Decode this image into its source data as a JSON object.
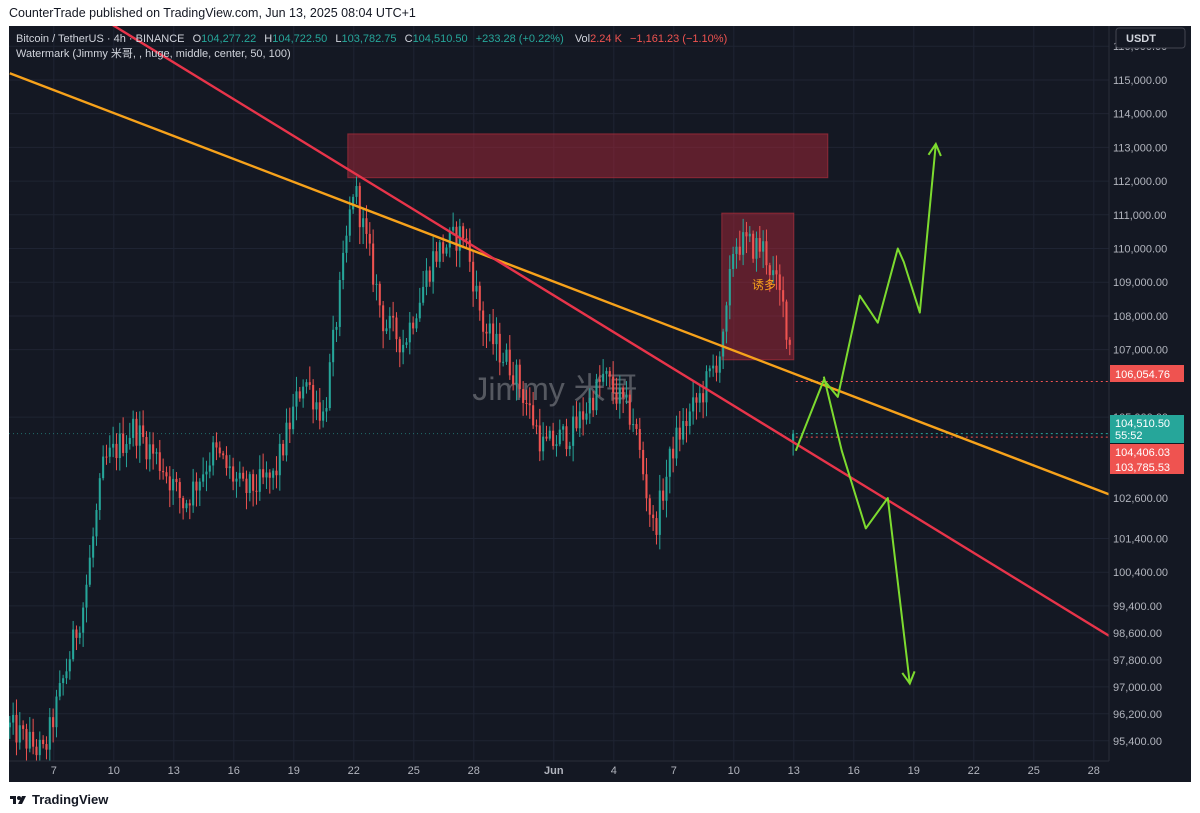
{
  "header": {
    "published": "CounterTrade published on TradingView.com, Jun 13, 2025 08:04 UTC+1"
  },
  "legend": {
    "symbol": "Bitcoin / TetherUS · 4h · BINANCE",
    "o_label": "O",
    "o_value": "104,277.22",
    "h_label": "H",
    "h_value": "104,722.50",
    "l_label": "L",
    "l_value": "103,782.75",
    "c_label": "C",
    "c_value": "104,510.50",
    "change": "+233.28 (+0.22%)",
    "vol_label": "Vol",
    "vol_value": "2.24 K",
    "vol_change": "−1,161.23 (−1.10%)",
    "watermark_line": "Watermark (Jimmy 米哥, , huge, middle, center, 50, 100)"
  },
  "currency_button": "USDT",
  "watermark": "Jimmy 米哥",
  "annotation": "诱多",
  "price_labels": {
    "level_red": "106,054.76",
    "last_price": "104,510.50",
    "countdown": "55:52",
    "low_a": "104,406.03",
    "low_b": "103,785.53"
  },
  "footer": {
    "brand": "TradingView"
  },
  "colors": {
    "background": "#141823",
    "up": "#26a69a",
    "down": "#ef5350",
    "orange_trendline": "#f7a21b",
    "red_trendline": "#e8344a",
    "projection": "#7ddb2f"
  },
  "chart_data": {
    "type": "candlestick",
    "title": "",
    "y_axis": {
      "min": 94800,
      "max": 116600,
      "tick_labels": [
        "116,000.00",
        "115,000.00",
        "114,000.00",
        "113,000.00",
        "112,000.00",
        "111,000.00",
        "110,000.00",
        "109,000.00",
        "108,000.00",
        "107,000.00",
        "105,000.00",
        "102,600.00",
        "101,400.00",
        "100,400.00",
        "99,400.00",
        "98,600.00",
        "97,800.00",
        "97,000.00",
        "96,200.00",
        "95,400.00"
      ],
      "tick_values": [
        116000,
        115000,
        114000,
        113000,
        112000,
        111000,
        110000,
        109000,
        108000,
        107000,
        105000,
        102600,
        101400,
        100400,
        99400,
        98600,
        97800,
        97000,
        96200,
        95400
      ]
    },
    "x_axis": {
      "tick_labels": [
        "7",
        "10",
        "13",
        "16",
        "19",
        "22",
        "25",
        "28",
        "Jun",
        "4",
        "7",
        "10",
        "13",
        "16",
        "19",
        "22",
        "25",
        "28"
      ],
      "tick_day_index": [
        7,
        10,
        13,
        16,
        19,
        22,
        25,
        28,
        32,
        35,
        38,
        41,
        44,
        47,
        50,
        53,
        56,
        59
      ],
      "day_index_range": [
        4.76,
        59.76
      ],
      "note_day_index": "day 1 = May 1 2025; day 32 = Jun 1"
    },
    "key_points": [
      {
        "day": 4.8,
        "price": 95800
      },
      {
        "day": 6.5,
        "price": 95000
      },
      {
        "day": 8.5,
        "price": 99500
      },
      {
        "day": 9.5,
        "price": 103600
      },
      {
        "day": 11,
        "price": 104700
      },
      {
        "day": 12.5,
        "price": 103500
      },
      {
        "day": 13.5,
        "price": 102400
      },
      {
        "day": 15,
        "price": 104000
      },
      {
        "day": 16.5,
        "price": 102800
      },
      {
        "day": 18,
        "price": 103200
      },
      {
        "day": 19.5,
        "price": 106200
      },
      {
        "day": 20.5,
        "price": 105000
      },
      {
        "day": 22,
        "price": 111900
      },
      {
        "day": 23.5,
        "price": 107800
      },
      {
        "day": 24.5,
        "price": 107200
      },
      {
        "day": 26,
        "price": 109800
      },
      {
        "day": 27.5,
        "price": 110500
      },
      {
        "day": 28.5,
        "price": 107600
      },
      {
        "day": 30,
        "price": 106400
      },
      {
        "day": 31.5,
        "price": 104100
      },
      {
        "day": 33,
        "price": 104600
      },
      {
        "day": 34.5,
        "price": 106200
      },
      {
        "day": 36,
        "price": 104900
      },
      {
        "day": 37,
        "price": 101600
      },
      {
        "day": 38,
        "price": 104200
      },
      {
        "day": 39.5,
        "price": 105800
      },
      {
        "day": 40.5,
        "price": 107200
      },
      {
        "day": 41,
        "price": 110200
      },
      {
        "day": 42.5,
        "price": 110000
      },
      {
        "day": 43.5,
        "price": 108200
      },
      {
        "day": 43.9,
        "price": 106800
      },
      {
        "day": 44.1,
        "price": 104510
      }
    ],
    "drawings": {
      "resistance_zone": {
        "day_from": 21.7,
        "day_to": 45.7,
        "price_from": 112100,
        "price_to": 113400
      },
      "trap_box": {
        "day_from": 40.4,
        "day_to": 44.0,
        "price_from": 106700,
        "price_to": 111050
      },
      "orange_trendline": [
        {
          "day": 4.8,
          "price": 115200
        },
        {
          "day": 59.8,
          "price": 102700
        }
      ],
      "red_trendline": [
        {
          "day": 4.8,
          "price": 118500
        },
        {
          "day": 59.8,
          "price": 98500
        }
      ],
      "dotted_levels": [
        106054.76,
        104510.5,
        104406.03
      ],
      "bullish_projection": [
        {
          "day": 44.1,
          "price": 104000
        },
        {
          "day": 45.5,
          "price": 106100
        },
        {
          "day": 46.2,
          "price": 105600
        },
        {
          "day": 47.3,
          "price": 108600
        },
        {
          "day": 48.2,
          "price": 107800
        },
        {
          "day": 49.2,
          "price": 110000
        },
        {
          "day": 49.5,
          "price": 109600
        },
        {
          "day": 50.3,
          "price": 108100
        },
        {
          "day": 51.1,
          "price": 113100
        }
      ],
      "bearish_projection": [
        {
          "day": 45.5,
          "price": 106200
        },
        {
          "day": 46.4,
          "price": 104000
        },
        {
          "day": 47.6,
          "price": 101700
        },
        {
          "day": 48.7,
          "price": 102600
        },
        {
          "day": 49.8,
          "price": 97100
        }
      ]
    }
  }
}
